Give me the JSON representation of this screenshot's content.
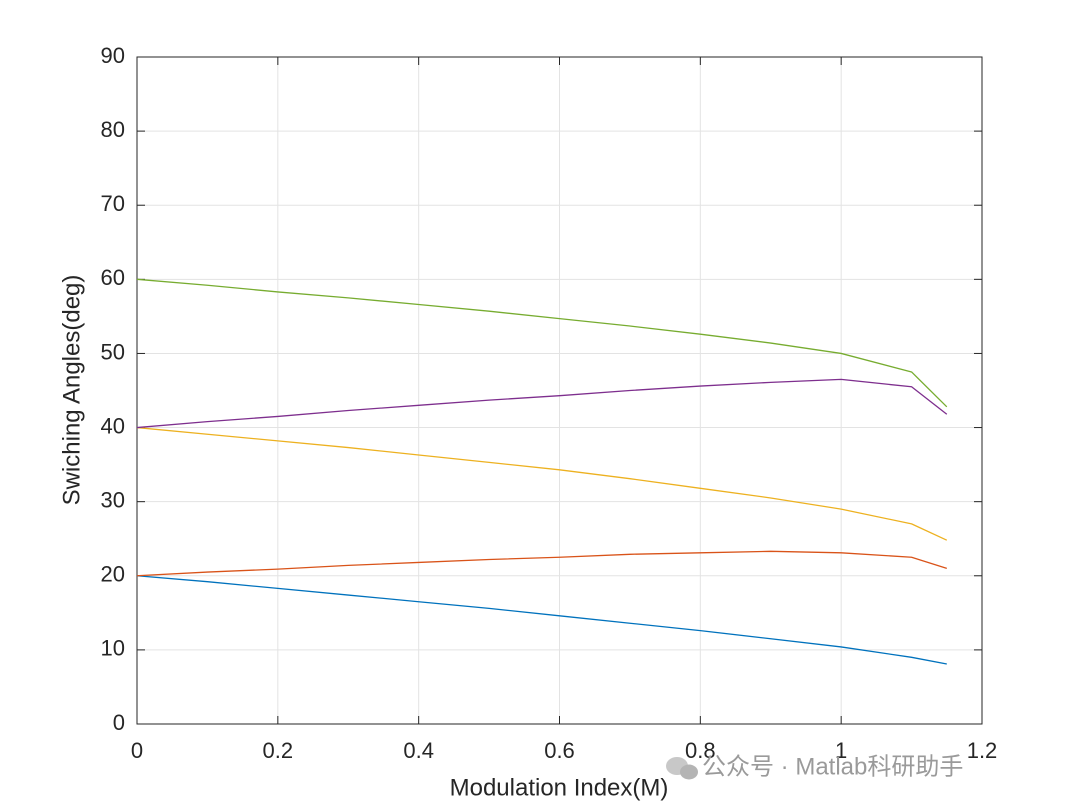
{
  "chart_data": {
    "type": "line",
    "xlabel": "Modulation Index(M)",
    "ylabel": "Swiching Angles(deg)",
    "x": [
      0,
      0.1,
      0.2,
      0.3,
      0.4,
      0.5,
      0.6,
      0.7,
      0.8,
      0.9,
      1.0,
      1.1,
      1.15
    ],
    "series": [
      {
        "color": "#0072BD",
        "values": [
          20,
          19.2,
          18.3,
          17.4,
          16.5,
          15.6,
          14.6,
          13.6,
          12.6,
          11.5,
          10.4,
          9.0,
          8.1
        ]
      },
      {
        "color": "#D95319",
        "values": [
          20,
          20.5,
          20.9,
          21.4,
          21.8,
          22.2,
          22.5,
          22.9,
          23.1,
          23.3,
          23.1,
          22.5,
          21.0
        ]
      },
      {
        "color": "#EDB120",
        "values": [
          40,
          39.1,
          38.2,
          37.3,
          36.3,
          35.3,
          34.3,
          33.1,
          31.8,
          30.5,
          29.0,
          27.0,
          24.8
        ]
      },
      {
        "color": "#7E2F8E",
        "values": [
          40,
          40.8,
          41.5,
          42.3,
          43.0,
          43.7,
          44.3,
          45.0,
          45.6,
          46.1,
          46.5,
          45.5,
          41.8
        ]
      },
      {
        "color": "#77AC30",
        "values": [
          60,
          59.2,
          58.3,
          57.5,
          56.6,
          55.7,
          54.7,
          53.7,
          52.6,
          51.4,
          50.0,
          47.5,
          42.8
        ]
      }
    ],
    "xlim": [
      0,
      1.2
    ],
    "xticks": [
      0,
      0.2,
      0.4,
      0.6,
      0.8,
      1,
      1.2
    ],
    "ylim": [
      0,
      90
    ],
    "yticks": [
      0,
      10,
      20,
      30,
      40,
      50,
      60,
      70,
      80,
      90
    ],
    "grid": true
  },
  "watermark": "公众号 · Matlab科研助手"
}
